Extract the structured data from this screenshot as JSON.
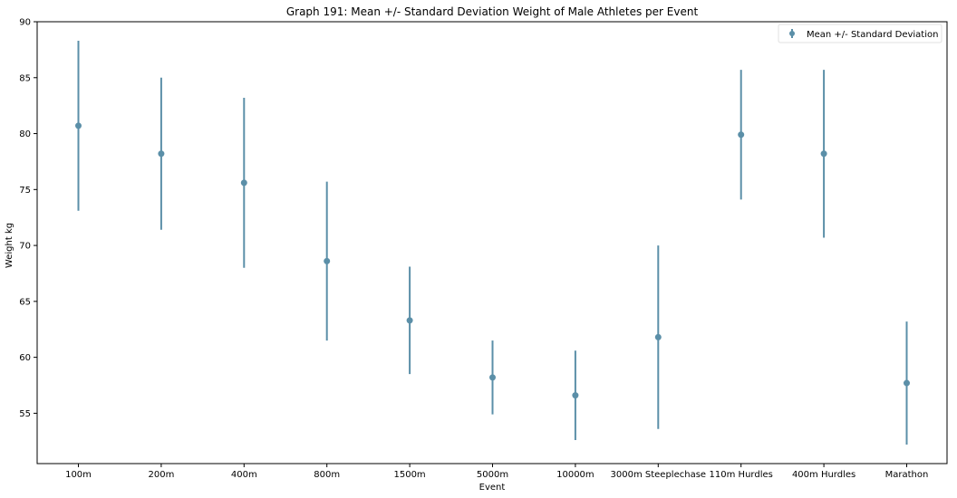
{
  "chart_data": {
    "type": "errorbar",
    "title": "Graph 191: Mean +/- Standard Deviation Weight of Male Athletes per Event",
    "xlabel": "Event",
    "ylabel": "Weight kg",
    "ylim": [
      50.5,
      90
    ],
    "yticks": [
      55,
      60,
      65,
      70,
      75,
      80,
      85,
      90
    ],
    "grid": false,
    "legend_position": "top-right",
    "color": "#5b8fa8",
    "categories": [
      "100m",
      "200m",
      "400m",
      "800m",
      "1500m",
      "5000m",
      "10000m",
      "3000m Steeplechase",
      "110m Hurdles",
      "400m Hurdles",
      "Marathon"
    ],
    "series": [
      {
        "name": "Mean +/- Standard Deviation",
        "mean": [
          80.7,
          78.2,
          75.6,
          68.6,
          63.3,
          58.2,
          56.6,
          61.8,
          79.9,
          78.2,
          57.7
        ],
        "std": [
          7.6,
          6.8,
          7.6,
          7.1,
          4.8,
          3.3,
          4.0,
          8.2,
          5.8,
          7.5,
          5.5
        ]
      }
    ]
  }
}
